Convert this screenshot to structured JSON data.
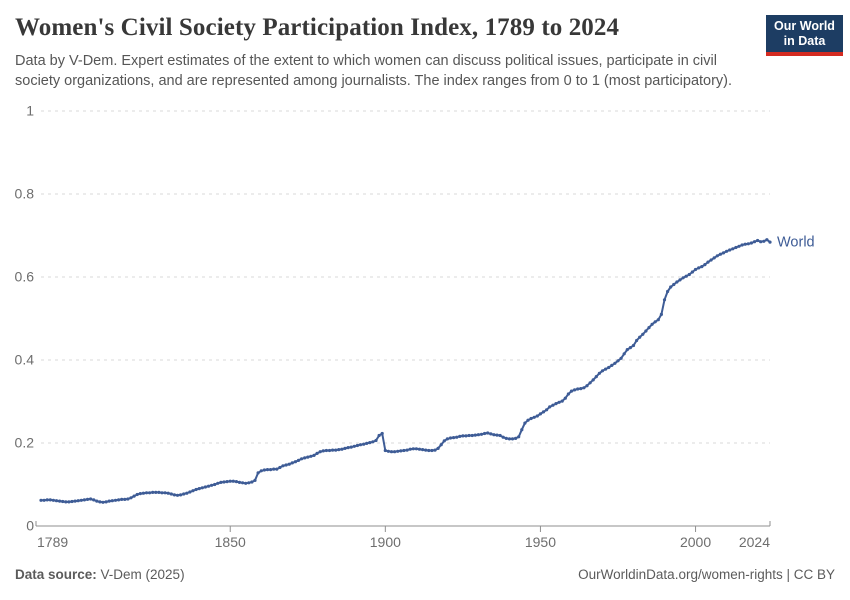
{
  "header": {
    "title": "Women's Civil Society Participation Index, 1789 to 2024",
    "subtitle": "Data by V-Dem. Expert estimates of the extent to which women can discuss political issues, participate in civil society organizations, and are represented among journalists. The index ranges from 0 to 1 (most participatory).",
    "logo": {
      "line1": "Our World",
      "line2": "in Data",
      "bg_color": "#1d3d63",
      "accent_color": "#d42b21"
    }
  },
  "footer": {
    "source_label": "Data source:",
    "source_value": " V-Dem (2025)",
    "right_text": "OurWorldinData.org/women-rights | CC BY"
  },
  "chart_data": {
    "type": "line",
    "title": "Women's Civil Society Participation Index, 1789 to 2024",
    "xlabel": "",
    "ylabel": "",
    "xlim": [
      1789,
      2024
    ],
    "ylim": [
      0,
      1
    ],
    "grid": "horizontal-dashed",
    "legend_position": "end-of-line",
    "x_tick_years": [
      1789,
      1850,
      1900,
      1950,
      2000,
      2024
    ],
    "y_ticks": [
      0,
      0.2,
      0.4,
      0.6,
      0.8,
      1
    ],
    "y_tick_labels": [
      "0",
      "0.2",
      "0.4",
      "0.6",
      "0.8",
      "1"
    ],
    "series": [
      {
        "name": "World",
        "color": "#3e5c96",
        "start_year": 1789,
        "end_year": 2024,
        "annual_values": [
          0.062,
          0.062,
          0.063,
          0.063,
          0.062,
          0.061,
          0.06,
          0.059,
          0.058,
          0.058,
          0.059,
          0.06,
          0.061,
          0.062,
          0.063,
          0.064,
          0.065,
          0.063,
          0.06,
          0.058,
          0.057,
          0.058,
          0.06,
          0.061,
          0.062,
          0.063,
          0.064,
          0.064,
          0.065,
          0.068,
          0.072,
          0.076,
          0.078,
          0.079,
          0.08,
          0.08,
          0.081,
          0.081,
          0.081,
          0.08,
          0.08,
          0.079,
          0.077,
          0.075,
          0.074,
          0.075,
          0.077,
          0.079,
          0.082,
          0.085,
          0.088,
          0.09,
          0.092,
          0.094,
          0.096,
          0.098,
          0.1,
          0.103,
          0.105,
          0.106,
          0.107,
          0.108,
          0.108,
          0.107,
          0.105,
          0.104,
          0.103,
          0.104,
          0.106,
          0.11,
          0.128,
          0.133,
          0.135,
          0.136,
          0.136,
          0.137,
          0.137,
          0.141,
          0.145,
          0.147,
          0.149,
          0.152,
          0.155,
          0.158,
          0.162,
          0.164,
          0.166,
          0.168,
          0.17,
          0.175,
          0.179,
          0.181,
          0.182,
          0.182,
          0.183,
          0.183,
          0.184,
          0.185,
          0.187,
          0.189,
          0.19,
          0.192,
          0.194,
          0.196,
          0.197,
          0.199,
          0.201,
          0.203,
          0.206,
          0.218,
          0.223,
          0.182,
          0.18,
          0.179,
          0.179,
          0.18,
          0.181,
          0.182,
          0.183,
          0.185,
          0.186,
          0.186,
          0.185,
          0.184,
          0.183,
          0.182,
          0.182,
          0.183,
          0.187,
          0.196,
          0.205,
          0.21,
          0.212,
          0.213,
          0.214,
          0.216,
          0.217,
          0.217,
          0.218,
          0.218,
          0.219,
          0.22,
          0.221,
          0.223,
          0.224,
          0.222,
          0.22,
          0.219,
          0.218,
          0.214,
          0.211,
          0.21,
          0.21,
          0.211,
          0.215,
          0.232,
          0.248,
          0.255,
          0.259,
          0.262,
          0.265,
          0.27,
          0.275,
          0.28,
          0.287,
          0.291,
          0.295,
          0.298,
          0.301,
          0.308,
          0.318,
          0.325,
          0.328,
          0.33,
          0.331,
          0.333,
          0.338,
          0.345,
          0.352,
          0.36,
          0.368,
          0.374,
          0.378,
          0.382,
          0.387,
          0.392,
          0.398,
          0.404,
          0.415,
          0.425,
          0.43,
          0.435,
          0.447,
          0.455,
          0.462,
          0.47,
          0.478,
          0.486,
          0.492,
          0.497,
          0.51,
          0.545,
          0.565,
          0.576,
          0.582,
          0.588,
          0.593,
          0.598,
          0.602,
          0.606,
          0.612,
          0.618,
          0.622,
          0.625,
          0.63,
          0.636,
          0.641,
          0.646,
          0.651,
          0.655,
          0.658,
          0.662,
          0.665,
          0.668,
          0.671,
          0.674,
          0.677,
          0.679,
          0.68,
          0.682,
          0.685,
          0.688,
          0.685,
          0.686,
          0.69,
          0.684
        ]
      }
    ],
    "style": {
      "grid_color": "#d8d8d8",
      "axis_color": "#8f8f8f",
      "tick_label_color": "#6e6e6e"
    }
  }
}
